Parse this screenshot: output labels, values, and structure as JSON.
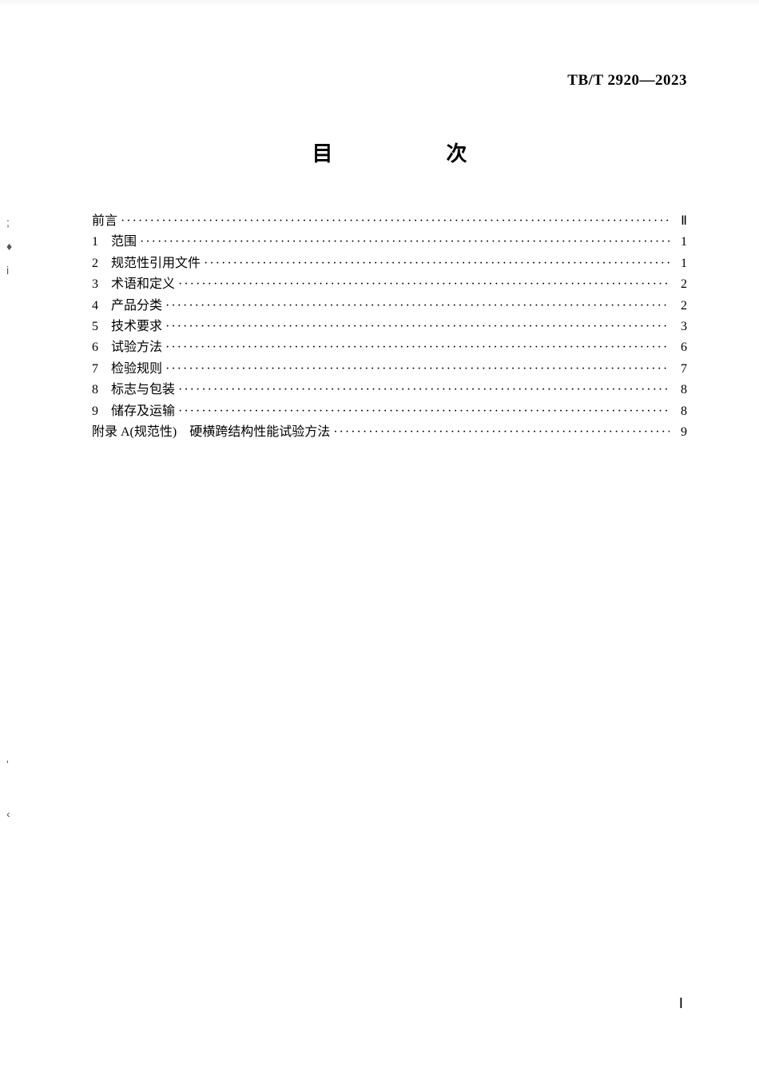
{
  "standard_number": "TB/T 2920—2023",
  "title": "目　　次",
  "toc": {
    "entries": [
      {
        "num": "",
        "label": "前言",
        "page": "Ⅱ"
      },
      {
        "num": "1",
        "label": "范围",
        "page": "1"
      },
      {
        "num": "2",
        "label": "规范性引用文件",
        "page": "1"
      },
      {
        "num": "3",
        "label": "术语和定义",
        "page": "2"
      },
      {
        "num": "4",
        "label": "产品分类",
        "page": "2"
      },
      {
        "num": "5",
        "label": "技术要求",
        "page": "3"
      },
      {
        "num": "6",
        "label": "试验方法",
        "page": "6"
      },
      {
        "num": "7",
        "label": "检验规则",
        "page": "7"
      },
      {
        "num": "8",
        "label": "标志与包装",
        "page": "8"
      },
      {
        "num": "9",
        "label": "储存及运输",
        "page": "8"
      },
      {
        "num": "",
        "label": "附录 A(规范性)　硬横跨结构性能试验方法",
        "page": "9"
      }
    ]
  },
  "page_footer": "Ⅰ",
  "colors": {
    "text": "#000000",
    "background": "#ffffff"
  },
  "typography": {
    "body_fontsize": 16,
    "title_fontsize": 26,
    "header_fontsize": 19,
    "font_family": "SimSun"
  }
}
